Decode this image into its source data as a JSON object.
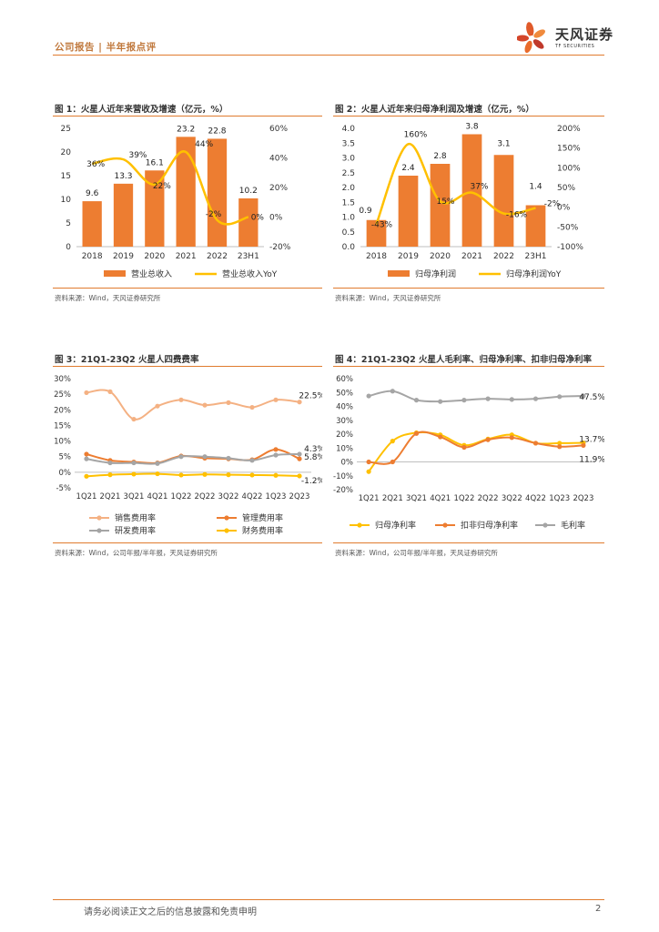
{
  "header": {
    "title": "公司报告 | 半年报点评"
  },
  "logo": {
    "name": "天风证券",
    "sub": "TF SECURITIES"
  },
  "figures": [
    {
      "title": "图 1：火星人近年来营收及增速（亿元，%）",
      "source": "资料来源：Wind，天风证券研究所"
    },
    {
      "title": "图 2：火星人近年来归母净利润及增速（亿元，%）",
      "source": "资料来源：Wind，天风证券研究所"
    },
    {
      "title": "图 3：21Q1-23Q2 火星人四费费率",
      "source": "资料来源：Wind，公司年报/半年报，天风证券研究所"
    },
    {
      "title": "图 4：21Q1-23Q2 火星人毛利率、归母净利率、扣非归母净利率",
      "source": "资料来源：Wind，公司年报/半年报，天风证券研究所"
    }
  ],
  "chart_data": [
    {
      "type": "bar",
      "categories": [
        "2018",
        "2019",
        "2020",
        "2021",
        "2022",
        "23H1"
      ],
      "series": [
        {
          "name": "营业总收入",
          "kind": "bar",
          "axis": "left",
          "values": [
            9.6,
            13.3,
            16.1,
            23.2,
            22.8,
            10.2
          ],
          "labels": [
            "9.6",
            "13.3",
            "16.1",
            "23.2",
            "22.8",
            "10.2"
          ]
        },
        {
          "name": "营业总收入YoY",
          "kind": "line",
          "axis": "right",
          "values": [
            36,
            39,
            22,
            44,
            -2,
            0
          ],
          "labels": [
            "36%",
            "39%",
            "22%",
            "44%",
            "-2%",
            "0%"
          ]
        }
      ],
      "y_left": {
        "min": 0,
        "max": 25,
        "step": 5,
        "ticks": [
          "0",
          "5",
          "10",
          "15",
          "20",
          "25"
        ]
      },
      "y_right": {
        "min": -20,
        "max": 60,
        "step": 20,
        "ticks": [
          "-20%",
          "0%",
          "20%",
          "40%",
          "60%"
        ]
      },
      "colors": {
        "bar": "#ed7d31",
        "line": "#ffc000"
      }
    },
    {
      "type": "bar",
      "categories": [
        "2018",
        "2019",
        "2020",
        "2021",
        "2022",
        "23H1"
      ],
      "series": [
        {
          "name": "归母净利润",
          "kind": "bar",
          "axis": "left",
          "values": [
            0.9,
            2.4,
            2.8,
            3.8,
            3.1,
            1.4
          ],
          "labels": [
            "0.9",
            "2.4",
            "2.8",
            "3.8",
            "3.1",
            "1.4"
          ]
        },
        {
          "name": "归母净利润YoY",
          "kind": "line",
          "axis": "right",
          "values": [
            -43,
            160,
            15,
            37,
            -16,
            -2
          ],
          "labels": [
            "-43%",
            "160%",
            "15%",
            "37%",
            "-16%",
            "-2%"
          ]
        }
      ],
      "y_left": {
        "min": 0,
        "max": 4,
        "step": 0.5,
        "ticks": [
          "0.0",
          "0.5",
          "1.0",
          "1.5",
          "2.0",
          "2.5",
          "3.0",
          "3.5",
          "4.0"
        ]
      },
      "y_right": {
        "min": -100,
        "max": 200,
        "step": 50,
        "ticks": [
          "-100%",
          "-50%",
          "0%",
          "50%",
          "100%",
          "150%",
          "200%"
        ]
      },
      "colors": {
        "bar": "#ed7d31",
        "line": "#ffc000"
      }
    },
    {
      "type": "line",
      "categories": [
        "1Q21",
        "2Q21",
        "3Q21",
        "4Q21",
        "1Q22",
        "2Q22",
        "3Q22",
        "4Q22",
        "1Q23",
        "2Q23"
      ],
      "series": [
        {
          "name": "销售费用率",
          "color": "#f4b183",
          "values": [
            25.5,
            25.8,
            17.0,
            21.2,
            23.2,
            21.5,
            22.3,
            20.8,
            23.2,
            22.5
          ]
        },
        {
          "name": "管理费用率",
          "color": "#ed7d31",
          "values": [
            5.8,
            3.8,
            3.3,
            3.0,
            5.2,
            4.5,
            4.3,
            4.0,
            7.3,
            4.3
          ]
        },
        {
          "name": "研发费用率",
          "color": "#a5a5a5",
          "values": [
            4.3,
            3.0,
            3.0,
            2.8,
            5.0,
            5.0,
            4.5,
            3.8,
            5.5,
            5.8
          ]
        },
        {
          "name": "财务费用率",
          "color": "#ffc000",
          "values": [
            -1.3,
            -0.8,
            -0.6,
            -0.5,
            -0.9,
            -0.7,
            -0.8,
            -0.9,
            -1.0,
            -1.2
          ]
        }
      ],
      "end_labels": [
        "22.5%",
        "4.3%",
        "5.8%",
        "-1.2%"
      ],
      "y": {
        "min": -5,
        "max": 30,
        "step": 5,
        "ticks": [
          "-5%",
          "0%",
          "5%",
          "10%",
          "15%",
          "20%",
          "25%",
          "30%"
        ]
      }
    },
    {
      "type": "line",
      "categories": [
        "1Q21",
        "2Q21",
        "3Q21",
        "4Q21",
        "1Q22",
        "2Q22",
        "3Q22",
        "4Q22",
        "1Q23",
        "2Q23"
      ],
      "series": [
        {
          "name": "归母净利率",
          "color": "#ffc000",
          "values": [
            -7.0,
            15.0,
            21.0,
            19.5,
            12.0,
            16.5,
            19.5,
            13.5,
            13.5,
            13.7
          ]
        },
        {
          "name": "扣非归母净利率",
          "color": "#ed7d31",
          "values": [
            0.0,
            0.0,
            20.5,
            18.0,
            10.5,
            16.0,
            17.5,
            13.5,
            11.0,
            11.9
          ]
        },
        {
          "name": "毛利率",
          "color": "#a5a5a5",
          "values": [
            47.5,
            51.0,
            44.5,
            43.5,
            44.5,
            45.5,
            45.0,
            45.5,
            47.0,
            47.5
          ]
        }
      ],
      "end_labels": [
        "13.7%",
        "11.9%",
        "47.5%"
      ],
      "y": {
        "min": -20,
        "max": 60,
        "step": 10,
        "ticks": [
          "-20%",
          "-10%",
          "0%",
          "10%",
          "20%",
          "30%",
          "40%",
          "50%",
          "60%"
        ]
      }
    }
  ],
  "footer": {
    "disclaimer": "请务必阅读正文之后的信息披露和免责申明",
    "page": "2"
  }
}
